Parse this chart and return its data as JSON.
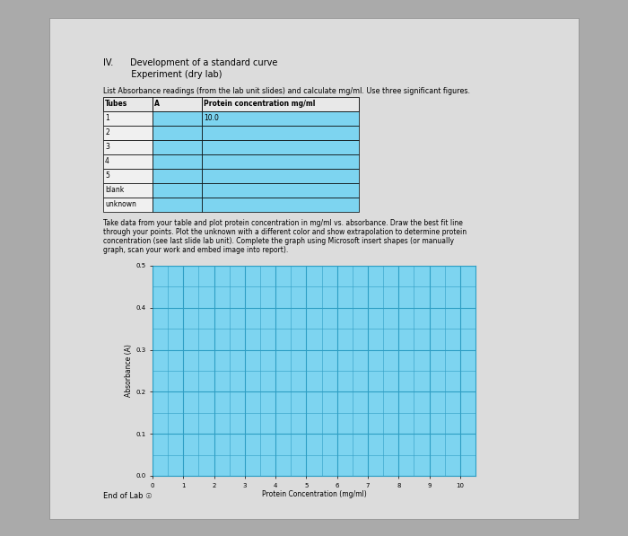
{
  "page_title_1": "IV.      Development of a standard curve",
  "page_title_2": "          Experiment (dry lab)",
  "table_instruction": "List Absorbance readings (from the lab unit slides) and calculate mg/ml. Use three significant figures.",
  "table_headers": [
    "Tubes",
    "A",
    "Protein concentration mg/ml"
  ],
  "table_rows": [
    [
      "1",
      "",
      "10.0"
    ],
    [
      "2",
      "",
      ""
    ],
    [
      "3",
      "",
      ""
    ],
    [
      "4",
      "",
      ""
    ],
    [
      "5",
      "",
      ""
    ],
    [
      "blank",
      "",
      ""
    ],
    [
      "unknown",
      "",
      ""
    ]
  ],
  "paragraph_line1": "Take data from your table and plot protein concentration in mg/ml vs. absorbance. Draw the ​best fit line",
  "paragraph_line2": "through your points. Plot the ​unknown​ with a ​different color​ and show extrapolation to determine protein",
  "paragraph_line3": "concentration (see last slide lab unit). Complete the graph using Microsoft insert shapes (or manually",
  "paragraph_line4": "graph, scan your work and embed image into report).",
  "graph_xlabel": "Protein Concentration (mg/ml)",
  "graph_ylabel": "Absorbance (A)",
  "graph_xlim": [
    0,
    10
  ],
  "graph_ylim": [
    0,
    0.5
  ],
  "graph_xticks": [
    0,
    1,
    2,
    3,
    4,
    5,
    6,
    7,
    8,
    9,
    10
  ],
  "graph_yticks": [
    0.0,
    0.1,
    0.2,
    0.3,
    0.4,
    0.5
  ],
  "graph_bg_color": "#7dd4f0",
  "grid_color": "#2e9ec4",
  "footer": "End of Lab ☉",
  "outer_bg": "#aaaaaa",
  "page_bg": "#dcdcdc",
  "white_col_color": "#f0f0f0",
  "blue_col_color": "#7dd4f0",
  "header_bg": "#e8e8e8"
}
